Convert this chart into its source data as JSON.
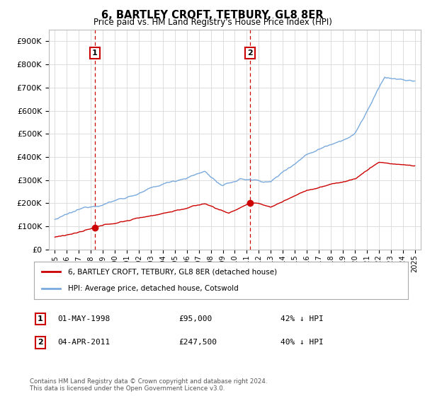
{
  "title": "6, BARTLEY CROFT, TETBURY, GL8 8ER",
  "subtitle": "Price paid vs. HM Land Registry's House Price Index (HPI)",
  "legend_red": "6, BARTLEY CROFT, TETBURY, GL8 8ER (detached house)",
  "legend_blue": "HPI: Average price, detached house, Cotswold",
  "transaction1_date": "01-MAY-1998",
  "transaction1_price": "£95,000",
  "transaction1_hpi": "42% ↓ HPI",
  "transaction1_year": 1998.33,
  "transaction1_value": 95000,
  "transaction2_date": "04-APR-2011",
  "transaction2_price": "£247,500",
  "transaction2_hpi": "40% ↓ HPI",
  "transaction2_year": 2011.25,
  "transaction2_value": 247500,
  "footnote": "Contains HM Land Registry data © Crown copyright and database right 2024.\nThis data is licensed under the Open Government Licence v3.0.",
  "red_color": "#cc0000",
  "blue_color": "#7aaadd",
  "vline_color": "#cc0000",
  "grid_color": "#dddddd",
  "background_color": "#ffffff",
  "ylim": [
    0,
    950000
  ],
  "xlim_start": 1994.5,
  "xlim_end": 2025.5,
  "yticks": [
    0,
    100000,
    200000,
    300000,
    400000,
    500000,
    600000,
    700000,
    800000,
    900000
  ],
  "ytick_labels": [
    "£0",
    "£100K",
    "£200K",
    "£300K",
    "£400K",
    "£500K",
    "£600K",
    "£700K",
    "£800K",
    "£900K"
  ],
  "xtick_years": [
    1995,
    1996,
    1997,
    1998,
    1999,
    2000,
    2001,
    2002,
    2003,
    2004,
    2005,
    2006,
    2007,
    2008,
    2009,
    2010,
    2011,
    2012,
    2013,
    2014,
    2015,
    2016,
    2017,
    2018,
    2019,
    2020,
    2021,
    2022,
    2023,
    2024,
    2025
  ]
}
